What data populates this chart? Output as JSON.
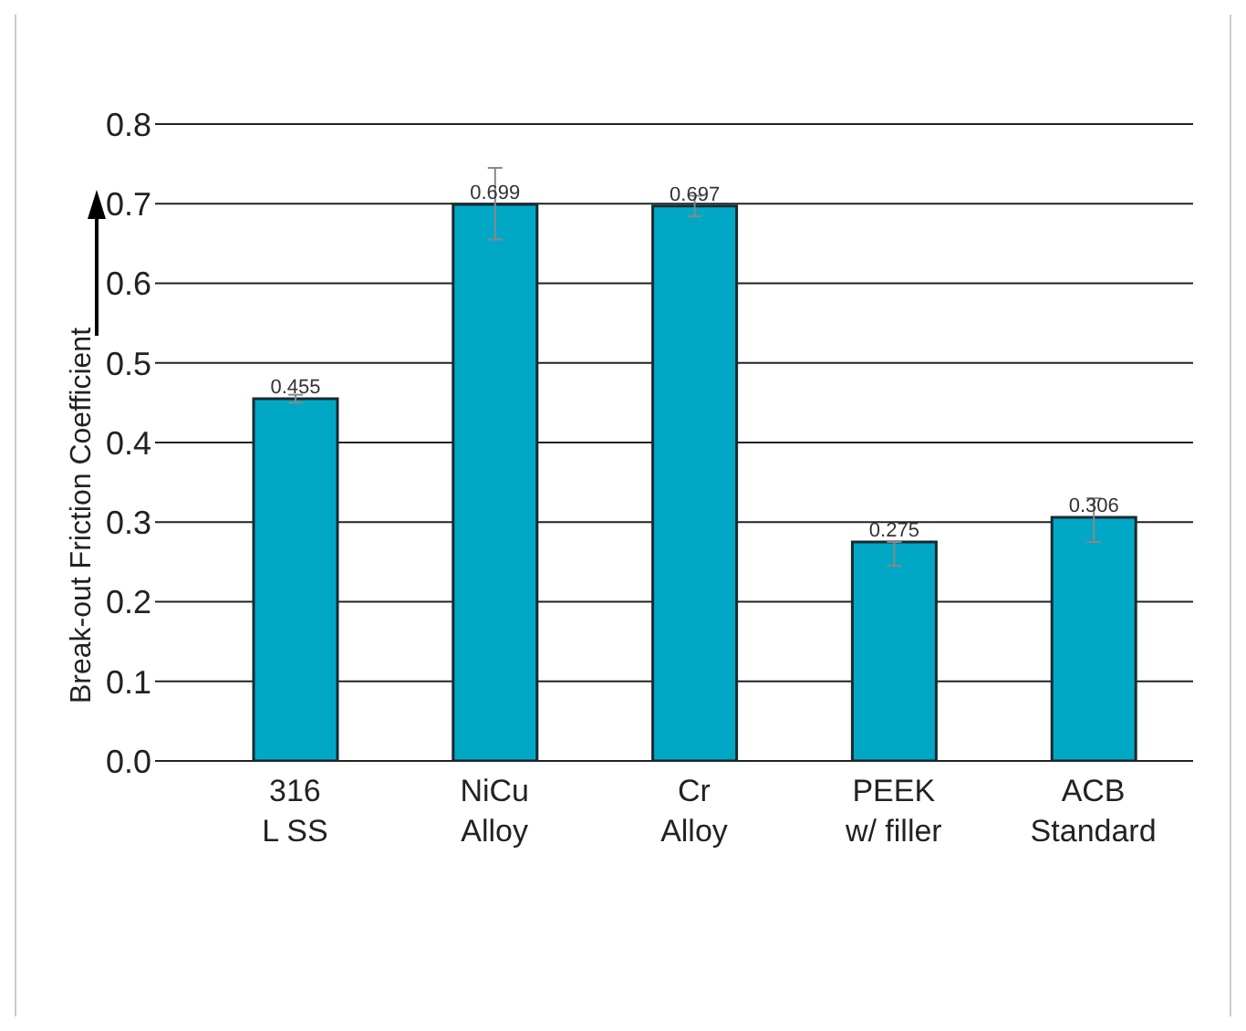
{
  "chart_data": {
    "type": "bar",
    "ylabel": "Break-out Friction Coefficient",
    "categories": [
      "316\nL SS",
      "NiCu\nAlloy",
      "Cr\nAlloy",
      "PEEK\nw/ filler",
      "ACB\nStandard"
    ],
    "values": [
      0.455,
      0.699,
      0.697,
      0.275,
      0.306
    ],
    "errors": [
      0.005,
      [
        0.655,
        0.745
      ],
      [
        0.684,
        0.71
      ],
      [
        0.245,
        0.275
      ],
      [
        0.275,
        0.33
      ]
    ],
    "color": "#00a8c6",
    "data_labels": true,
    "ylim": [
      0,
      0.8
    ],
    "yticks": [
      {
        "value": 0,
        "label": "0.0"
      },
      0.1,
      0.2,
      0.3,
      0.4,
      0.5,
      0.6,
      0.7,
      0.8
    ],
    "grid": "y",
    "legend": false
  }
}
